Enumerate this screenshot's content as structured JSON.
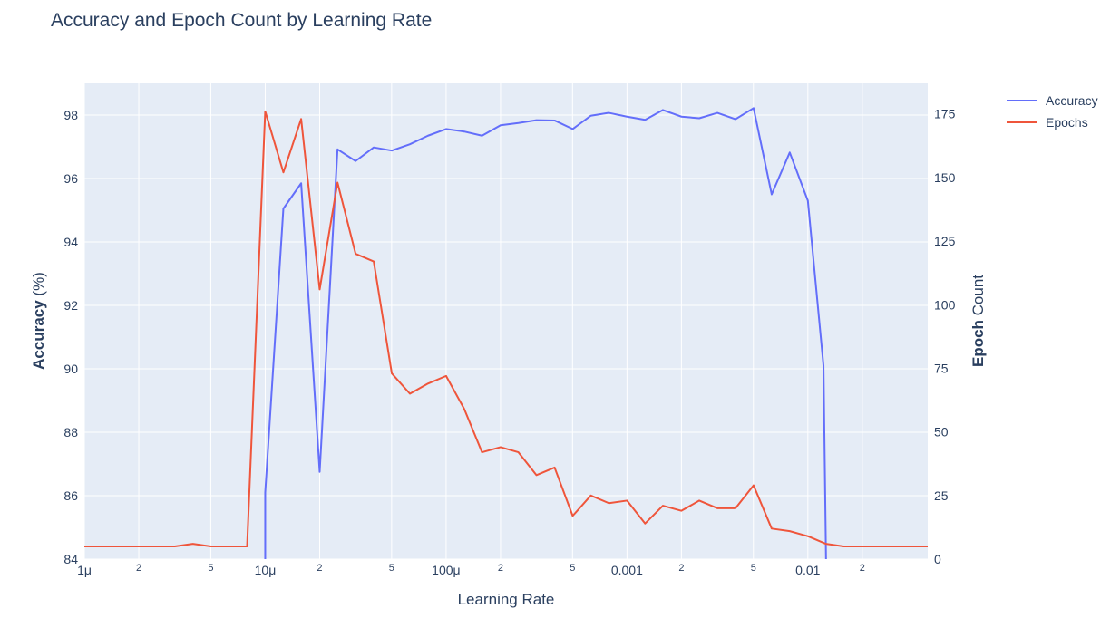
{
  "chart_data": {
    "type": "line",
    "title": "Accuracy and Epoch Count by Learning Rate",
    "xlabel": "Learning Rate",
    "x_scale": "log",
    "xlim": [
      1e-06,
      0.046
    ],
    "x_major_ticks": [
      {
        "value": 1e-06,
        "label": "1μ"
      },
      {
        "value": 1e-05,
        "label": "10μ"
      },
      {
        "value": 0.0001,
        "label": "100μ"
      },
      {
        "value": 0.001,
        "label": "0.001"
      },
      {
        "value": 0.01,
        "label": "0.01"
      }
    ],
    "x_minor_ticks": [
      {
        "value": 2e-06,
        "label": "2"
      },
      {
        "value": 5e-06,
        "label": "5"
      },
      {
        "value": 2e-05,
        "label": "2"
      },
      {
        "value": 5e-05,
        "label": "5"
      },
      {
        "value": 0.0002,
        "label": "2"
      },
      {
        "value": 0.0005,
        "label": "5"
      },
      {
        "value": 0.002,
        "label": "2"
      },
      {
        "value": 0.005,
        "label": "5"
      },
      {
        "value": 0.02,
        "label": "2"
      }
    ],
    "y_left": {
      "label_bold": "Accuracy",
      "label_rest": " (%)",
      "range": [
        84,
        99
      ],
      "ticks": [
        84,
        86,
        88,
        90,
        92,
        94,
        96,
        98
      ]
    },
    "y_right": {
      "label_bold": "Epoch",
      "label_rest": " Count",
      "range": [
        0,
        187
      ],
      "ticks": [
        0,
        25,
        50,
        75,
        100,
        125,
        150,
        175
      ]
    },
    "grid": true,
    "legend_position": "top-right",
    "series": [
      {
        "name": "Accuracy",
        "axis": "left",
        "color": "#636efa",
        "x": [
          1e-05,
          1e-05,
          1.26e-05,
          1.58e-05,
          2e-05,
          2.51e-05,
          3.16e-05,
          3.98e-05,
          5.01e-05,
          6.31e-05,
          7.94e-05,
          0.0001,
          0.000126,
          0.000158,
          0.0002,
          0.000251,
          0.000316,
          0.000398,
          0.000501,
          0.000631,
          0.000794,
          0.001,
          0.00126,
          0.00158,
          0.002,
          0.00251,
          0.00316,
          0.00398,
          0.00501,
          0.00631,
          0.00794,
          0.01,
          0.0122,
          0.0126
        ],
        "y": [
          84,
          86.1,
          95.05,
          95.85,
          86.75,
          96.92,
          96.55,
          96.98,
          96.88,
          97.08,
          97.35,
          97.56,
          97.48,
          97.35,
          97.68,
          97.75,
          97.84,
          97.83,
          97.56,
          97.98,
          98.07,
          97.95,
          97.85,
          98.16,
          97.95,
          97.9,
          98.07,
          97.87,
          98.22,
          95.5,
          96.82,
          95.3,
          90.1,
          84
        ]
      },
      {
        "name": "Epochs",
        "axis": "right",
        "color": "#ef553b",
        "x": [
          1e-06,
          1.26e-06,
          1.58e-06,
          2e-06,
          2.51e-06,
          3.16e-06,
          3.98e-06,
          5.01e-06,
          6.31e-06,
          7.94e-06,
          1e-05,
          1.26e-05,
          1.58e-05,
          2e-05,
          2.51e-05,
          3.16e-05,
          3.98e-05,
          5.01e-05,
          6.31e-05,
          7.94e-05,
          0.0001,
          0.000126,
          0.000158,
          0.0002,
          0.000251,
          0.000316,
          0.000398,
          0.000501,
          0.000631,
          0.000794,
          0.001,
          0.00126,
          0.00158,
          0.002,
          0.00251,
          0.00316,
          0.00398,
          0.00501,
          0.00631,
          0.00794,
          0.01,
          0.0126,
          0.0158,
          0.02,
          0.0251,
          0.0316,
          0.0398,
          0.046
        ],
        "y": [
          5,
          5,
          5,
          5,
          5,
          5,
          6,
          5,
          5,
          5,
          176,
          152,
          173,
          106,
          148,
          120,
          117,
          73,
          65,
          69,
          72,
          59,
          42,
          44,
          42,
          33,
          36,
          17,
          25,
          22,
          23,
          14,
          21,
          19,
          23,
          20,
          20,
          29,
          12,
          11,
          9,
          6,
          5,
          5,
          5,
          5,
          5,
          5
        ]
      }
    ]
  }
}
